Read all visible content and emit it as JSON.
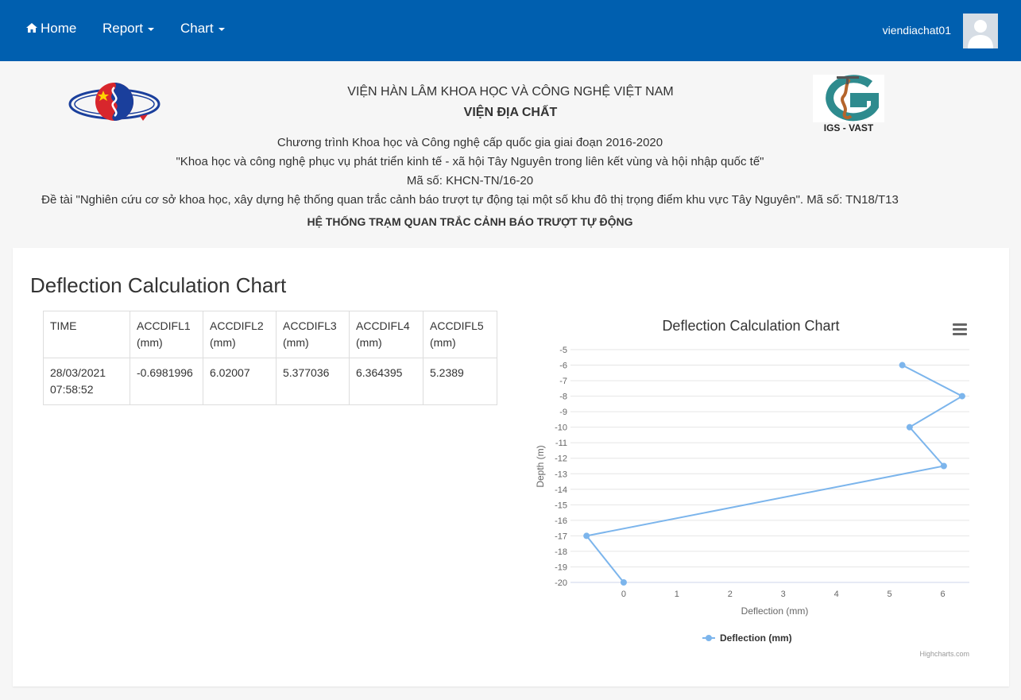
{
  "nav": {
    "home": "Home",
    "report": "Report",
    "chart": "Chart",
    "username": "viendiachat01"
  },
  "header": {
    "org": "VIỆN HÀN LÂM KHOA HỌC VÀ CÔNG NGHỆ VIỆT NAM",
    "institute": "VIỆN ĐỊA CHẤT",
    "program": "Chương trình Khoa học và Công nghệ cấp quốc gia giai đoạn 2016-2020",
    "program_title": "\"Khoa học và công nghệ phục vụ phát triển kinh tế - xã hội Tây Nguyên trong liên kết vùng và hội nhập quốc tế\"",
    "code": "Mã số: KHCN-TN/16-20",
    "project": "Đề tài \"Nghiên cứu cơ sở khoa học, xây dựng hệ thống quan trắc cảnh báo trượt tự động tại một số khu đô thị trọng điểm khu vực Tây Nguyên\". Mã số: TN18/T13",
    "system": "HỆ THỐNG TRẠM QUAN TRẮC CẢNH BÁO TRƯỢT TỰ ĐỘNG",
    "logo_right_text": "IGS - VAST"
  },
  "panel": {
    "title": "Deflection Calculation Chart"
  },
  "table": {
    "headers": [
      "TIME",
      "ACCDIFL1 (mm)",
      "ACCDIFL2 (mm)",
      "ACCDIFL3 (mm)",
      "ACCDIFL4 (mm)",
      "ACCDIFL5 (mm)"
    ],
    "rows": [
      [
        "28/03/2021 07:58:52",
        "-0.6981996",
        "6.02007",
        "5.377036",
        "6.364395",
        "5.2389"
      ]
    ]
  },
  "chart_data": {
    "type": "line",
    "title": "Deflection Calculation Chart",
    "xlabel": "Deflection (mm)",
    "ylabel": "Depth (m)",
    "xlim": [
      -1,
      6.5
    ],
    "ylim": [
      -20,
      -5
    ],
    "x_ticks": [
      0,
      1,
      2,
      3,
      4,
      5,
      6
    ],
    "y_ticks": [
      -5,
      -6,
      -7,
      -8,
      -9,
      -10,
      -11,
      -12,
      -13,
      -14,
      -15,
      -16,
      -17,
      -18,
      -19,
      -20
    ],
    "grid": true,
    "legend": "bottom-center",
    "series": [
      {
        "name": "Deflection (mm)",
        "color": "#7cb5ec",
        "points": [
          {
            "x": 5.2389,
            "y": -6
          },
          {
            "x": 6.364395,
            "y": -8
          },
          {
            "x": 5.377036,
            "y": -10
          },
          {
            "x": 6.02007,
            "y": -12.5
          },
          {
            "x": -0.6981996,
            "y": -17
          },
          {
            "x": 0,
            "y": -20
          }
        ]
      }
    ],
    "credits": "Highcharts.com"
  }
}
